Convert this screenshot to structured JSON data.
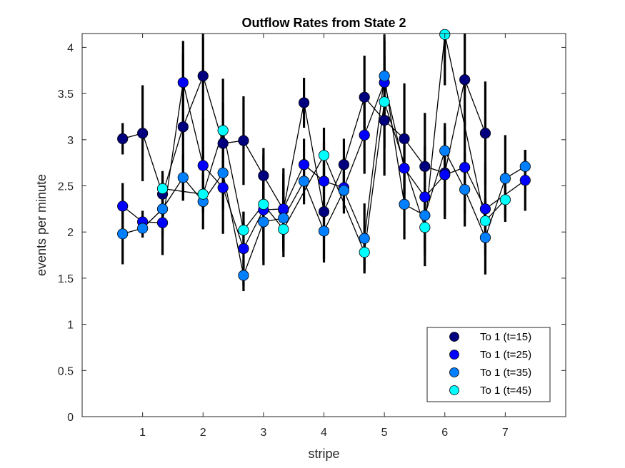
{
  "chart_data": {
    "type": "scatter",
    "title": "Outflow Rates from State 2",
    "xlabel": "stripe",
    "ylabel": "events per minute",
    "xlim": [
      0,
      8
    ],
    "ylim": [
      0,
      4.15
    ],
    "xticks": [
      1,
      2,
      3,
      4,
      5,
      6,
      7
    ],
    "yticks": [
      0,
      0.5,
      1,
      1.5,
      2,
      2.5,
      3,
      3.5,
      4
    ],
    "ytick_labels": [
      "0",
      "0.5",
      "1",
      "1.5",
      "2",
      "2.5",
      "3",
      "3.5",
      "4"
    ],
    "legend_position": "bottom-right",
    "series": [
      {
        "name": "To 1 (t=15)",
        "color": "#00007f",
        "x": [
          0.67,
          1.0,
          1.33,
          1.67,
          2.0,
          2.33,
          2.67,
          3.0,
          3.33,
          3.67,
          4.0,
          4.33,
          4.67,
          5.0,
          5.33,
          5.67,
          6.0,
          6.33,
          6.67
        ],
        "y": [
          3.01,
          3.07,
          2.41,
          3.14,
          3.69,
          2.96,
          2.99,
          2.61,
          2.24,
          3.4,
          2.22,
          2.73,
          3.46,
          3.21,
          3.01,
          2.71,
          2.64,
          3.65,
          3.07
        ],
        "err": [
          0.17,
          0.52,
          0.25,
          0.8,
          0.9,
          0.7,
          0.48,
          0.3,
          0.45,
          0.27,
          0.55,
          0.28,
          0.45,
          0.6,
          0.6,
          0.58,
          0.5,
          0.5,
          0.56
        ]
      },
      {
        "name": "To 1 (t=25)",
        "color": "#0000ff",
        "x": [
          0.67,
          1.0,
          1.33,
          1.67,
          2.0,
          2.33,
          2.67,
          3.0,
          3.33,
          3.67,
          4.0,
          4.33,
          4.67,
          5.0,
          5.33,
          5.67,
          6.0,
          6.33,
          6.67,
          7.33
        ],
        "y": [
          2.28,
          2.11,
          2.1,
          3.62,
          2.72,
          2.48,
          1.82,
          2.24,
          2.25,
          2.73,
          2.55,
          2.48,
          3.05,
          3.62,
          2.69,
          2.38,
          2.62,
          2.7,
          2.25,
          2.56
        ],
        "err": [
          0.25,
          0.12,
          0.35,
          0.45,
          0.5,
          0.5,
          0.4,
          0.6,
          0.38,
          0.28,
          0.42,
          0.28,
          0.42,
          0.45,
          0.35,
          0.55,
          0.45,
          0.5,
          0.5,
          0.33
        ]
      },
      {
        "name": "To 1 (t=35)",
        "color": "#007fff",
        "x": [
          0.67,
          1.0,
          1.33,
          1.67,
          2.0,
          2.33,
          2.67,
          3.0,
          3.33,
          3.67,
          4.0,
          4.33,
          4.67,
          5.0,
          5.33,
          5.67,
          6.0,
          6.33,
          6.67,
          7.0,
          7.33
        ],
        "y": [
          1.98,
          2.04,
          2.25,
          2.59,
          2.33,
          2.64,
          1.53,
          2.11,
          2.15,
          2.55,
          2.01,
          2.45,
          1.93,
          3.69,
          2.3,
          2.18,
          2.88,
          2.46,
          1.94,
          2.58,
          2.71
        ],
        "err": [
          0.33,
          0.1,
          0.3,
          0.25,
          0.3,
          0.4,
          0.17,
          0.42,
          0.42,
          0.25,
          0.3,
          0.2,
          0.38,
          0.45,
          0.38,
          0.55,
          0.3,
          0.4,
          0.4,
          0.47,
          0.18
        ]
      },
      {
        "name": "To 1 (t=45)",
        "color": "#00ffff",
        "x": [
          1.33,
          2.0,
          2.33,
          2.67,
          3.0,
          3.33,
          4.0,
          4.67,
          5.0,
          5.67,
          6.0,
          6.67,
          7.0
        ],
        "y": [
          2.47,
          2.41,
          3.1,
          2.02,
          2.3,
          2.03,
          2.83,
          1.78,
          3.41,
          2.05,
          4.14,
          2.12,
          2.35
        ],
        "err": [
          0.15,
          0.2,
          0.3,
          0.2,
          0.3,
          0.2,
          0.3,
          0.2,
          0.5,
          0.3,
          0.55,
          0.25,
          0.2
        ]
      }
    ]
  }
}
